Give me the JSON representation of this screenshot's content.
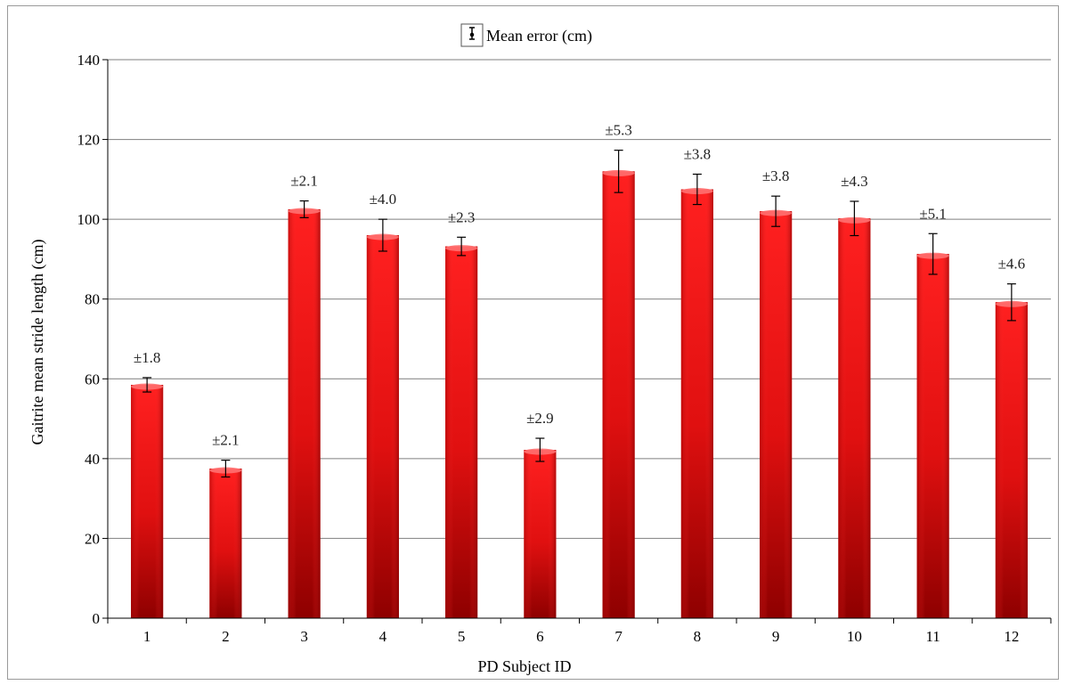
{
  "chart_data": {
    "type": "bar",
    "title": "",
    "xlabel": "PD Subject ID",
    "ylabel": "Gaitrite mean stride length (cm)",
    "categories": [
      "1",
      "2",
      "3",
      "4",
      "5",
      "6",
      "7",
      "8",
      "9",
      "10",
      "11",
      "12"
    ],
    "values": [
      58.5,
      37.5,
      102.5,
      96,
      93.2,
      42.2,
      112,
      107.5,
      102,
      100.2,
      91.3,
      79.2
    ],
    "error_values": [
      1.8,
      2.1,
      2.1,
      4.0,
      2.3,
      2.9,
      5.3,
      3.8,
      3.8,
      4.3,
      5.1,
      4.6
    ],
    "error_labels": [
      "±1.8",
      "±2.1",
      "±2.1",
      "±4.0",
      "±2.3",
      "±2.9",
      "±5.3",
      "±3.8",
      "±3.8",
      "±4.3",
      "±5.1",
      "±4.6"
    ],
    "ylim": [
      0,
      140
    ],
    "yticks": [
      "0",
      "20",
      "40",
      "60",
      "80",
      "100",
      "120",
      "140"
    ],
    "grid": true,
    "legend": {
      "placement": "top-center",
      "entries": [
        "Mean error (cm)"
      ]
    },
    "bar_color": "#e31c1c"
  }
}
